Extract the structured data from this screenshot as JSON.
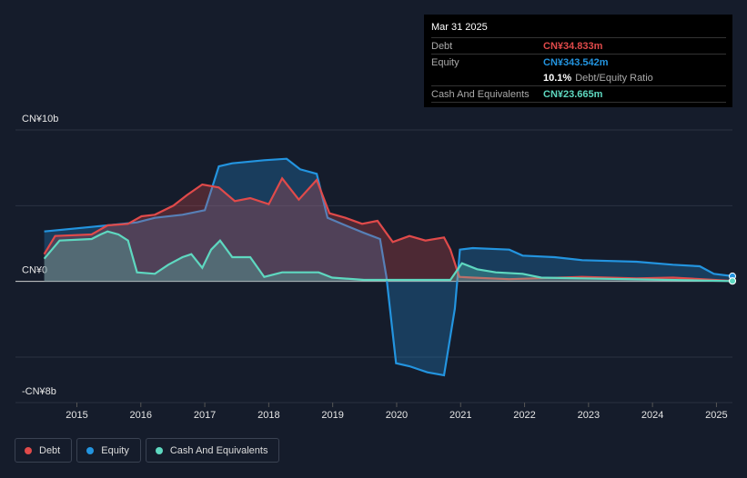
{
  "chart_data": {
    "type": "area-line",
    "ylim": [
      -8,
      10
    ],
    "yticks": [
      {
        "value": 10,
        "label": "CN¥10b"
      },
      {
        "value": 0,
        "label": "CN¥0"
      },
      {
        "value": -8,
        "label": "-CN¥8b"
      }
    ],
    "minor_yticks": [
      5,
      -5
    ],
    "xlim": [
      2014.04,
      2025.25
    ],
    "xticks": [
      2015,
      2016,
      2017,
      2018,
      2019,
      2020,
      2021,
      2022,
      2023,
      2024,
      2025
    ],
    "grid": true,
    "series": [
      {
        "name": "Debt",
        "color": "#e04a4a",
        "x": [
          2014.49,
          2014.66,
          2015.23,
          2015.48,
          2015.8,
          2016.01,
          2016.22,
          2016.51,
          2016.72,
          2016.96,
          2017.22,
          2017.47,
          2017.71,
          2018.0,
          2018.21,
          2018.47,
          2018.75,
          2018.95,
          2019.2,
          2019.46,
          2019.7,
          2019.94,
          2020.2,
          2020.45,
          2020.74,
          2020.84,
          2020.98,
          2021.19,
          2021.76,
          2022.9,
          2023.75,
          2024.32,
          2025.25
        ],
        "values": [
          1.8,
          3.0,
          3.1,
          3.7,
          3.8,
          4.3,
          4.4,
          5.0,
          5.7,
          6.4,
          6.2,
          5.3,
          5.5,
          5.1,
          6.8,
          5.4,
          6.7,
          4.5,
          4.2,
          3.8,
          4.0,
          2.6,
          3.0,
          2.7,
          2.9,
          2.1,
          0.3,
          0.25,
          0.15,
          0.3,
          0.2,
          0.25,
          0.035
        ]
      },
      {
        "name": "Equity",
        "color": "#2394df",
        "x": [
          2014.49,
          2015.23,
          2015.94,
          2016.22,
          2016.65,
          2017.0,
          2017.1,
          2017.22,
          2017.43,
          2017.93,
          2018.28,
          2018.49,
          2018.75,
          2018.92,
          2019.2,
          2019.49,
          2019.74,
          2019.84,
          2019.99,
          2020.2,
          2020.48,
          2020.74,
          2020.91,
          2020.99,
          2021.19,
          2021.76,
          2021.97,
          2022.47,
          2022.9,
          2023.75,
          2024.32,
          2024.74,
          2024.96,
          2025.25
        ],
        "values": [
          3.3,
          3.6,
          3.9,
          4.2,
          4.4,
          4.7,
          6.0,
          7.6,
          7.8,
          8.0,
          8.1,
          7.4,
          7.1,
          4.2,
          3.7,
          3.2,
          2.8,
          0.3,
          -5.4,
          -5.6,
          -6.0,
          -6.2,
          -1.8,
          2.1,
          2.2,
          2.1,
          1.7,
          1.6,
          1.4,
          1.3,
          1.1,
          1.0,
          0.5,
          0.344
        ]
      },
      {
        "name": "Cash And Equivalents",
        "color": "#5ed8c0",
        "x": [
          2014.49,
          2014.73,
          2015.23,
          2015.37,
          2015.48,
          2015.65,
          2015.8,
          2015.94,
          2016.22,
          2016.43,
          2016.65,
          2016.79,
          2016.96,
          2017.1,
          2017.24,
          2017.43,
          2017.71,
          2017.93,
          2018.21,
          2018.78,
          2018.99,
          2019.49,
          2020.84,
          2021.02,
          2021.26,
          2021.55,
          2021.97,
          2022.26,
          2022.9,
          2025.25
        ],
        "values": [
          1.5,
          2.7,
          2.8,
          3.1,
          3.3,
          3.1,
          2.7,
          0.6,
          0.5,
          1.1,
          1.6,
          1.8,
          0.9,
          2.1,
          2.7,
          1.6,
          1.6,
          0.3,
          0.6,
          0.6,
          0.25,
          0.1,
          0.1,
          1.2,
          0.8,
          0.6,
          0.5,
          0.25,
          0.2,
          0.024
        ]
      }
    ],
    "tooltip": {
      "date": "Mar 31 2025",
      "rows": [
        {
          "label": "Debt",
          "value": "CN¥34.833m"
        },
        {
          "label": "Equity",
          "value": "CN¥343.542m"
        },
        {
          "value": "10.1%",
          "note": "Debt/Equity Ratio"
        },
        {
          "label": "Cash And Equivalents",
          "value": "CN¥23.665m"
        }
      ]
    }
  }
}
